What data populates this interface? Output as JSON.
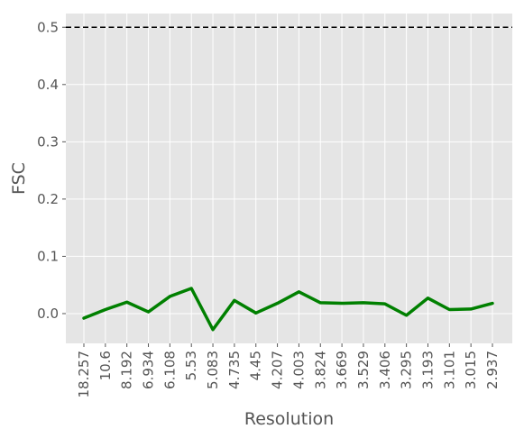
{
  "chart_data": {
    "type": "line",
    "title": "",
    "xlabel": "Resolution",
    "ylabel": "FSC",
    "categories": [
      "18.257",
      "10.6",
      "8.192",
      "6.934",
      "6.108",
      "5.53",
      "5.083",
      "4.735",
      "4.45",
      "4.207",
      "4.003",
      "3.824",
      "3.669",
      "3.529",
      "3.406",
      "3.295",
      "3.193",
      "3.101",
      "3.015",
      "2.937"
    ],
    "series": [
      {
        "values": [
          -0.008,
          0.007,
          0.02,
          0.003,
          0.03,
          0.044,
          -0.028,
          0.023,
          0.001,
          0.018,
          0.038,
          0.019,
          0.018,
          0.019,
          0.017,
          -0.003,
          0.027,
          0.007,
          0.008,
          0.018
        ],
        "color": "#008000"
      }
    ],
    "threshold": {
      "value": 0.5,
      "color": "#000000",
      "style": "dashed"
    },
    "ylim": [
      -0.052,
      0.524
    ],
    "yticks": [
      0.0,
      0.1,
      0.2,
      0.3,
      0.4,
      0.5
    ],
    "ytick_labels": [
      "0.0",
      "0.1",
      "0.2",
      "0.3",
      "0.4",
      "0.5"
    ],
    "grid": true,
    "background": "#e5e5e5"
  }
}
